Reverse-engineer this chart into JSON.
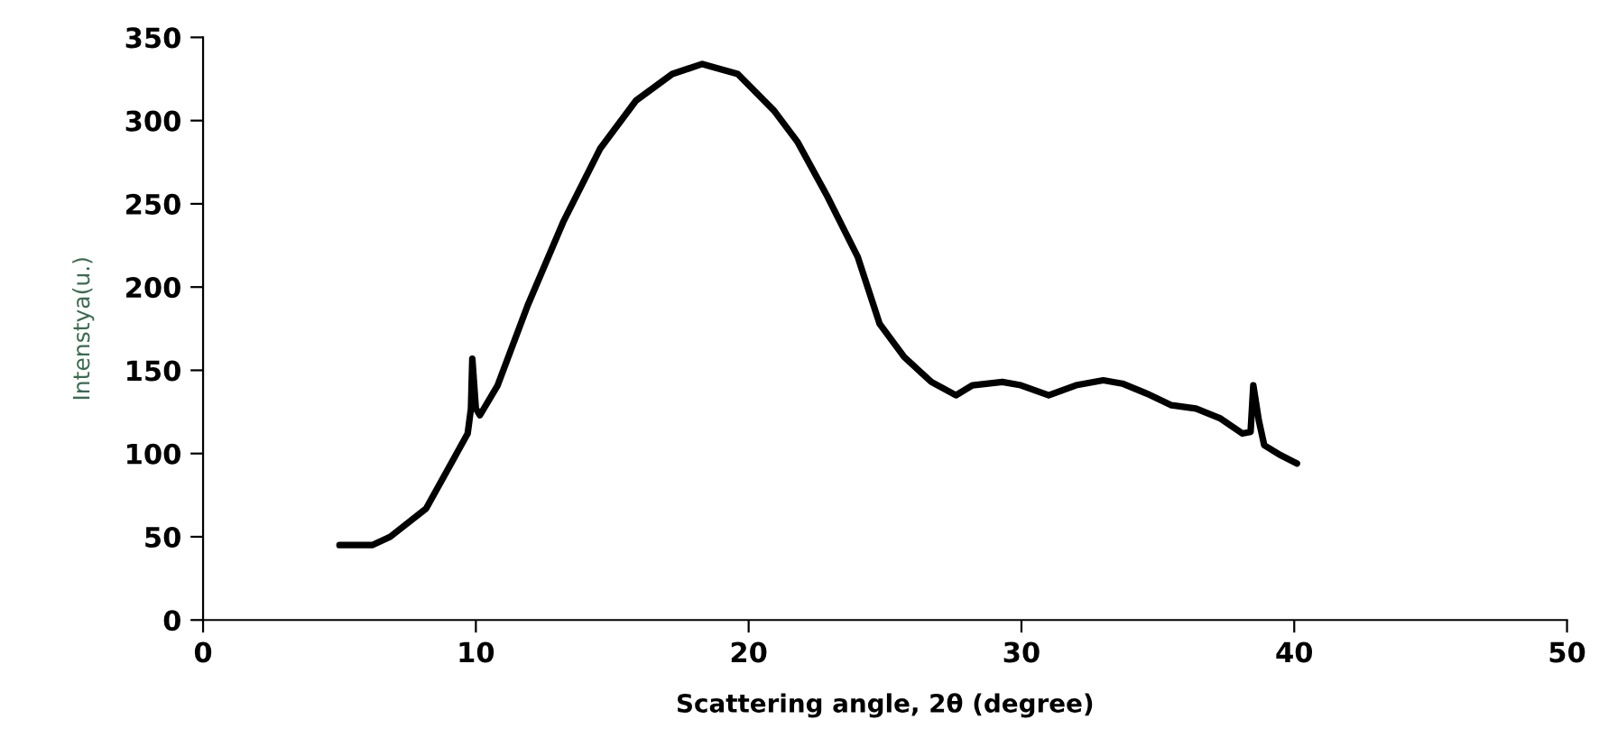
{
  "chart_data": {
    "type": "line",
    "xlabel": "Scattering angle, 2θ (degree)",
    "ylabel": "Intenstya(u.)",
    "xlim": [
      0,
      50
    ],
    "xticks": [
      0,
      10,
      20,
      30,
      40,
      50
    ],
    "ylim": [
      0,
      350
    ],
    "yticks": [
      0,
      50,
      100,
      150,
      200,
      250,
      300,
      350
    ],
    "grid": false,
    "legend": false,
    "marker": "none",
    "line_style": "solid",
    "series": [
      {
        "color": "#000000",
        "x": [
          5,
          6.2,
          6.86,
          8.18,
          9.7,
          9.82,
          9.87,
          10.0,
          10.15,
          10.8,
          11.9,
          13.2,
          14.55,
          15.87,
          17.2,
          18.3,
          19.6,
          20.93,
          21.8,
          22.9,
          24.0,
          24.8,
          25.7,
          26.7,
          27.6,
          28.2,
          29.3,
          29.98,
          31.0,
          32.0,
          33.0,
          33.7,
          34.6,
          35.5,
          36.4,
          37.3,
          38.1,
          38.4,
          38.5,
          38.7,
          38.9,
          39.5,
          40.1
        ],
        "values": [
          45,
          45,
          50,
          67,
          112,
          127,
          157,
          127,
          123,
          141,
          189,
          239,
          283,
          312,
          328,
          334,
          328,
          306,
          287,
          254,
          218,
          178,
          158,
          143,
          135,
          141,
          143,
          141,
          135,
          141,
          144,
          142,
          136,
          129,
          127,
          121,
          112,
          113,
          141,
          120,
          105,
          99,
          94
        ]
      }
    ]
  }
}
